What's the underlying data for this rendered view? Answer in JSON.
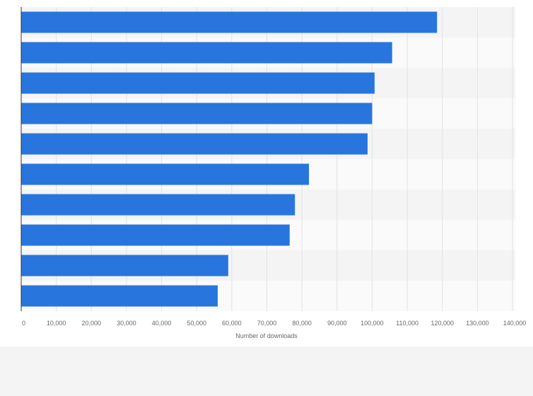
{
  "chart_data": {
    "type": "bar",
    "orientation": "horizontal",
    "categories": [
      "",
      "",
      "",
      "",
      "",
      "",
      "",
      "",
      "",
      ""
    ],
    "values": [
      118500,
      105700,
      100700,
      100000,
      98700,
      82000,
      78000,
      76500,
      59000,
      56000
    ],
    "xlabel": "Number of downloads",
    "xlim": [
      0,
      140000
    ],
    "xticks": [
      0,
      10000,
      20000,
      30000,
      40000,
      50000,
      60000,
      70000,
      80000,
      90000,
      100000,
      110000,
      120000,
      130000,
      140000
    ],
    "xtick_labels": [
      "0",
      "10,000",
      "20,000",
      "30,000",
      "40,000",
      "50,000",
      "60,000",
      "70,000",
      "80,000",
      "90,000",
      "100,000",
      "110,000",
      "120,000",
      "130,000",
      "140,000"
    ],
    "grid": true,
    "bar_color": "#2876dd",
    "band_colors": [
      "#f4f4f4",
      "#fafafa"
    ],
    "gridline_color": "#e2e2e2",
    "axis_color": "#333333",
    "tick_text_color": "#666666"
  }
}
